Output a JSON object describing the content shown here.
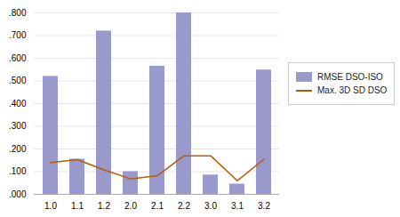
{
  "chart_data": {
    "type": "bar",
    "categories": [
      "1.0",
      "1.1",
      "1.2",
      "2.0",
      "2.1",
      "2.2",
      "3.0",
      "3.1",
      "3.2"
    ],
    "series": [
      {
        "name": "RMSE DSO-ISO",
        "type": "bar",
        "color": "#9999CC",
        "values": [
          0.52,
          0.155,
          0.72,
          0.1,
          0.565,
          0.8,
          0.085,
          0.045,
          0.548
        ]
      },
      {
        "name": "Max. 3D SD DSO",
        "type": "line",
        "color": "#B85C00",
        "values": [
          0.14,
          0.153,
          0.108,
          0.068,
          0.082,
          0.17,
          0.17,
          0.06,
          0.155
        ]
      }
    ],
    "ylim": [
      0.0,
      0.8
    ],
    "yticks": [
      {
        "value": 0.0,
        "label": ".000"
      },
      {
        "value": 0.1,
        "label": ".100"
      },
      {
        "value": 0.2,
        "label": ".200"
      },
      {
        "value": 0.3,
        "label": ".300"
      },
      {
        "value": 0.4,
        "label": ".400"
      },
      {
        "value": 0.5,
        "label": ".500"
      },
      {
        "value": 0.6,
        "label": ".600"
      },
      {
        "value": 0.7,
        "label": ".700"
      },
      {
        "value": 0.8,
        "label": ".800"
      }
    ],
    "grid": true,
    "legend": "right"
  }
}
